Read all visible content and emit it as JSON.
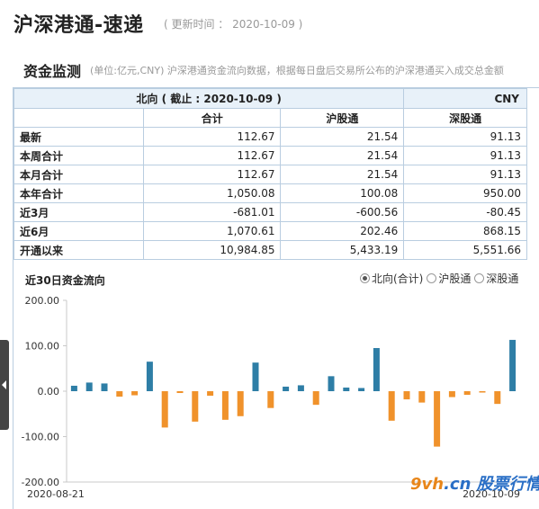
{
  "header": {
    "title": "沪深港通-速递",
    "update_time": "( 更新时间 ： 2020-10-09 )"
  },
  "section": {
    "title": "资金监测",
    "subtitle": "(单位:亿元,CNY)   沪深港通资金流向数据，根据每日盘后交易所公布的沪深港通买入成交总金额"
  },
  "table": {
    "direction_header": "北向 ( 截止 : 2020-10-09 )",
    "currency": "CNY",
    "columns": [
      "合计",
      "沪股通",
      "深股通"
    ],
    "rows": [
      {
        "label": "最新",
        "values": [
          "112.67",
          "21.54",
          "91.13"
        ]
      },
      {
        "label": "本周合计",
        "values": [
          "112.67",
          "21.54",
          "91.13"
        ]
      },
      {
        "label": "本月合计",
        "values": [
          "112.67",
          "21.54",
          "91.13"
        ]
      },
      {
        "label": "本年合计",
        "values": [
          "1,050.08",
          "100.08",
          "950.00"
        ]
      },
      {
        "label": "近3月",
        "values": [
          "-681.01",
          "-600.56",
          "-80.45"
        ]
      },
      {
        "label": "近6月",
        "values": [
          "1,070.61",
          "202.46",
          "868.15"
        ]
      },
      {
        "label": "开通以来",
        "values": [
          "10,984.85",
          "5,433.19",
          "5,551.66"
        ]
      }
    ]
  },
  "chart_panel": {
    "title": "近30日资金流向",
    "legend_options": [
      {
        "label": "北向(合计)",
        "selected": true
      },
      {
        "label": "沪股通",
        "selected": false
      },
      {
        "label": "深股通",
        "selected": false
      }
    ]
  },
  "watermark": {
    "brand": "9vh",
    "cn": ".cn",
    "name": "股票行情"
  },
  "chart_data": {
    "type": "bar",
    "ylim": [
      -200,
      200
    ],
    "y_ticks": [
      "200.00",
      "100.00",
      "0.00",
      "-100.00",
      "-200.00"
    ],
    "x_start_label": "2020-08-21",
    "x_end_label": "2020-10-09",
    "positive_color": "#2e7ea6",
    "negative_color": "#f0922b",
    "grid": false,
    "values": [
      12,
      19,
      17,
      -12,
      -9,
      65,
      -80,
      -4,
      -67,
      -10,
      -63,
      -55,
      63,
      -37,
      10,
      13,
      -30,
      33,
      8,
      7,
      95,
      -65,
      -18,
      -25,
      -122,
      -13,
      -8,
      -3,
      -28,
      113
    ]
  }
}
